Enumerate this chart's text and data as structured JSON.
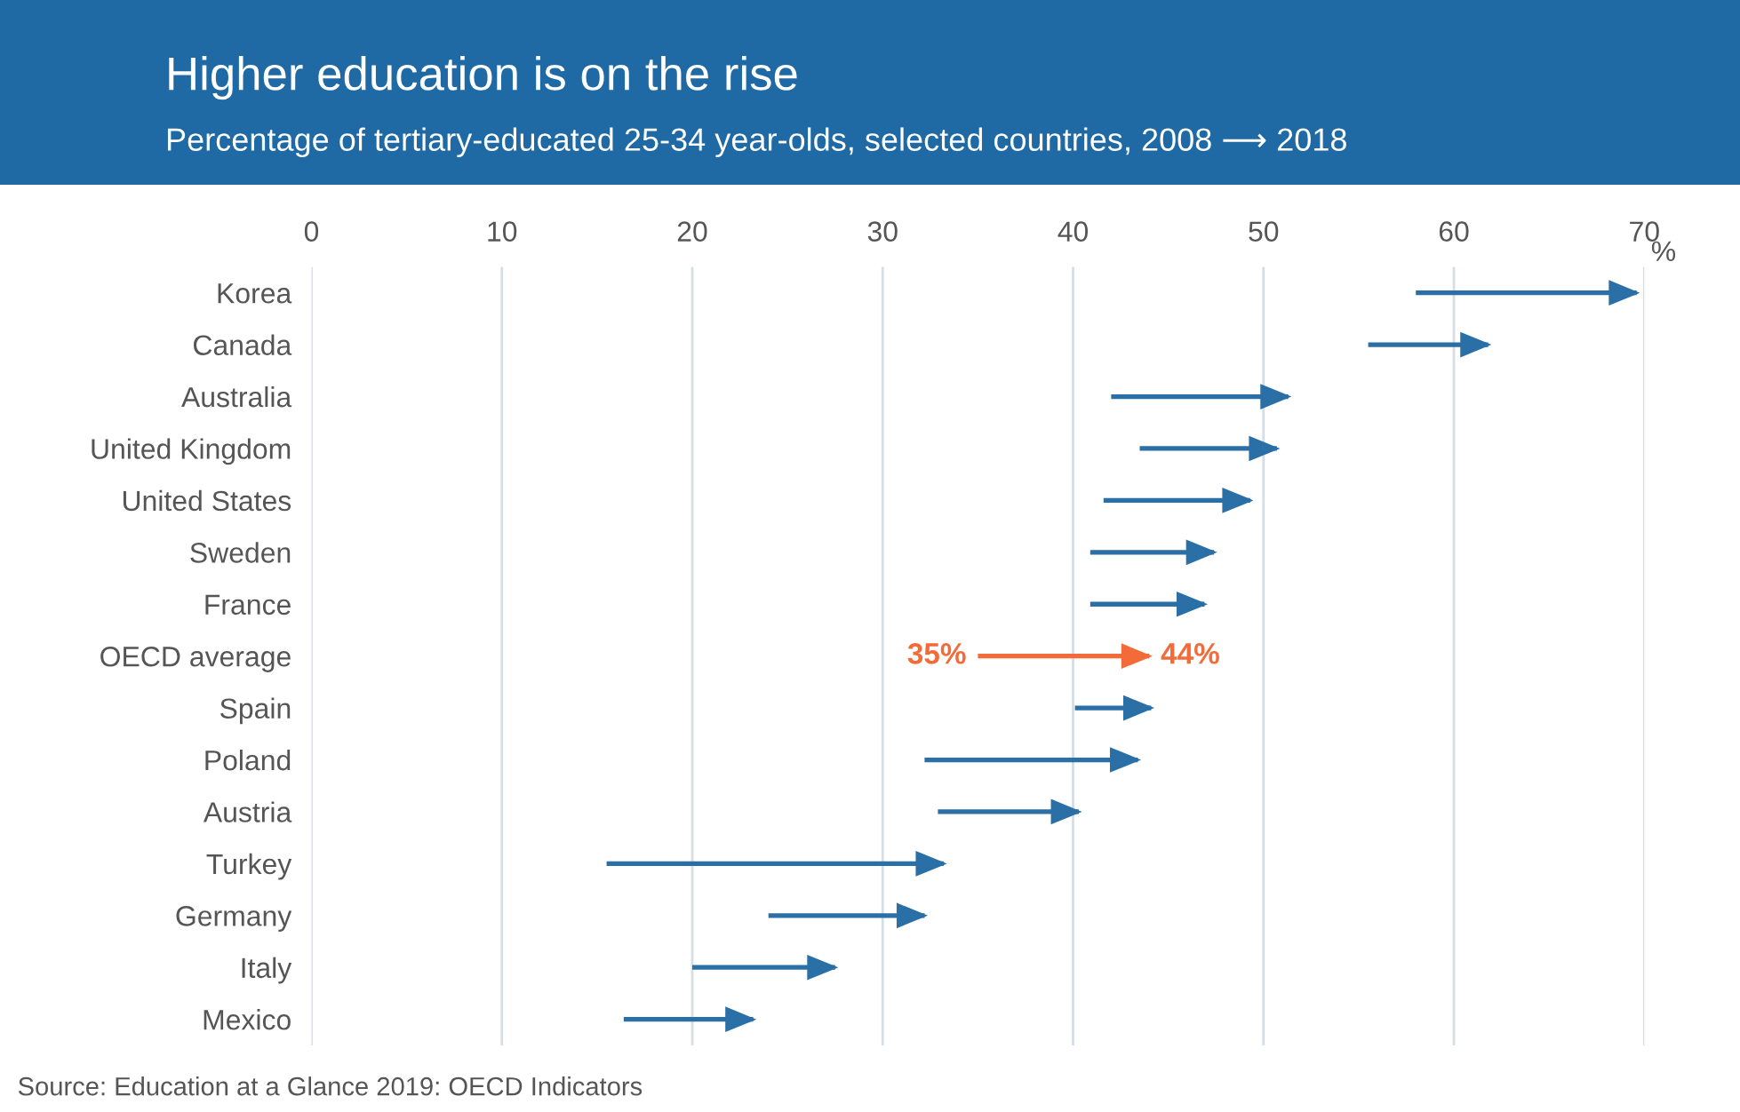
{
  "chart_data": {
    "type": "bar",
    "orientation": "horizontal",
    "title": "Higher education is on the rise",
    "subtitle": "Percentage of tertiary-educated 25-34 year-olds, selected countries, 2008 ⟶ 2018",
    "xlabel": "%",
    "categories": [
      "Korea",
      "Canada",
      "Australia",
      "United Kingdom",
      "United States",
      "Sweden",
      "France",
      "OECD average",
      "Spain",
      "Poland",
      "Austria",
      "Turkey",
      "Germany",
      "Italy",
      "Mexico"
    ],
    "base": [
      58,
      55.5,
      42,
      43.5,
      41.6,
      40.9,
      40.9,
      35,
      40.1,
      32.2,
      32.9,
      15.5,
      24,
      20,
      16.4
    ],
    "values": [
      11.6,
      6.3,
      9.3,
      7.2,
      7.7,
      6.5,
      6.0,
      9,
      4.0,
      11.2,
      7.4,
      17.7,
      8.2,
      7.5,
      6.8
    ],
    "colors": [
      "#2a6fa6",
      "#2a6fa6",
      "#2a6fa6",
      "#2a6fa6",
      "#2a6fa6",
      "#2a6fa6",
      "#2a6fa6",
      "#f26b38",
      "#2a6fa6",
      "#2a6fa6",
      "#2a6fa6",
      "#2a6fa6",
      "#2a6fa6",
      "#2a6fa6",
      "#2a6fa6"
    ],
    "xlim": [
      0,
      70
    ],
    "xticks": [
      0,
      10,
      20,
      30,
      40,
      50,
      60,
      70
    ],
    "grid": "x",
    "legend": false,
    "annotations": [
      {
        "text": "35%",
        "x": 35,
        "y": "OECD average"
      },
      {
        "text": "44%",
        "x": 44,
        "y": "OECD average"
      },
      "Source: Education at a Glance 2019: OECD Indicators"
    ]
  }
}
